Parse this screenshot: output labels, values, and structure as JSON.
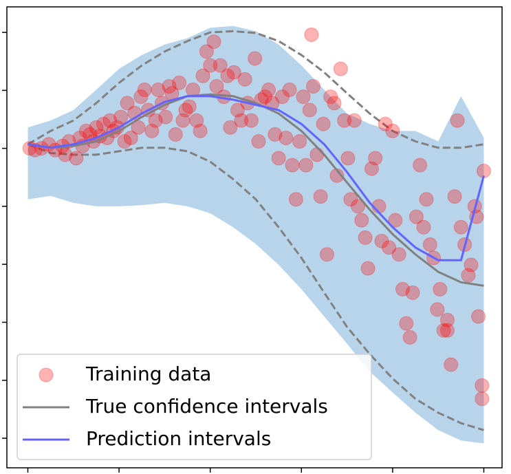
{
  "chart_data": {
    "type": "scatter",
    "x": [
      0,
      0.25,
      0.5,
      0.75,
      1,
      1.25,
      1.5,
      1.75,
      2,
      2.25,
      2.5,
      2.75,
      3,
      3.25,
      3.5,
      3.75,
      4,
      4.25,
      4.5,
      4.75,
      5
    ],
    "series": [
      {
        "name": "Training data",
        "type": "scatter",
        "color": "#ff0000",
        "x": [
          0.02,
          0.08,
          0.15,
          0.23,
          0.3,
          0.38,
          0.41,
          0.45,
          0.53,
          0.57,
          0.6,
          0.64,
          0.68,
          0.72,
          0.75,
          0.79,
          0.83,
          0.87,
          0.9,
          0.94,
          0.98,
          1.02,
          1.06,
          1.09,
          1.13,
          1.17,
          1.21,
          1.24,
          1.28,
          1.32,
          1.36,
          1.4,
          1.43,
          1.47,
          1.51,
          1.55,
          1.58,
          1.62,
          1.66,
          1.7,
          1.73,
          1.77,
          1.81,
          1.85,
          1.89,
          1.92,
          1.96,
          2.0,
          2.04,
          2.07,
          2.11,
          2.15,
          2.19,
          2.22,
          2.26,
          2.3,
          2.34,
          2.38,
          2.41,
          2.45,
          2.49,
          2.53,
          2.56,
          2.6,
          2.64,
          2.68,
          2.71,
          2.75,
          2.79,
          2.83,
          2.87,
          2.9,
          2.94,
          2.98,
          3.02,
          3.05,
          3.09,
          3.13,
          3.17,
          3.21,
          3.24,
          3.28,
          3.32,
          3.36,
          3.39,
          3.43,
          3.47,
          3.51,
          3.54,
          3.58,
          3.62,
          3.66,
          3.7,
          3.73,
          3.77,
          3.81,
          3.85,
          3.88,
          3.92,
          3.96,
          4.0,
          4.03,
          4.07,
          4.11,
          4.15,
          4.19,
          4.22,
          4.26,
          4.3,
          4.34,
          4.37,
          4.41,
          4.45,
          4.49,
          4.52,
          4.56,
          4.6,
          4.64,
          4.68,
          4.71,
          4.75,
          4.79,
          4.83,
          4.86,
          4.9,
          4.94,
          4.98,
          5.0,
          4.98,
          3.11,
          4.6,
          4.92
        ],
        "y": [
          5.0,
          4.97,
          5.0,
          5.07,
          4.97,
          5.04,
          4.89,
          5.12,
          4.83,
          5.18,
          5.04,
          5.3,
          5.24,
          5.12,
          5.36,
          5.21,
          5.42,
          5.18,
          5.48,
          5.3,
          5.36,
          5.54,
          5.12,
          5.78,
          5.18,
          5.61,
          5.36,
          5.89,
          6.01,
          5.66,
          5.3,
          5.48,
          6.01,
          5.78,
          5.54,
          6.07,
          5.95,
          5.24,
          6.13,
          5.48,
          5.66,
          5.72,
          6.01,
          5.48,
          5.3,
          6.25,
          6.67,
          6.43,
          6.84,
          6.07,
          6.43,
          5.89,
          6.25,
          5.36,
          6.31,
          5.66,
          5.48,
          6.19,
          5.78,
          5.48,
          6.55,
          5.12,
          5.84,
          5.89,
          6.01,
          5.78,
          5.24,
          4.83,
          5.89,
          5.18,
          6.01,
          4.71,
          4.12,
          5.12,
          5.89,
          4.71,
          5.66,
          6.07,
          4.89,
          4.17,
          5.42,
          3.17,
          5.89,
          5.78,
          4.53,
          6.37,
          5.48,
          4.83,
          4.12,
          5.48,
          4.0,
          3.76,
          3.46,
          2.93,
          4.65,
          4.83,
          4.0,
          3.4,
          5.42,
          3.29,
          5.3,
          3.76,
          3.17,
          2.57,
          1.98,
          1.74,
          2.51,
          3.82,
          4.71,
          3.64,
          4.12,
          3.34,
          3.11,
          2.22,
          2.57,
          1.86,
          2.04,
          1.27,
          4.17,
          5.48,
          3.64,
          3.34,
          2.81,
          2.99,
          4.0,
          2.1,
          0.91,
          4.61,
          0.68,
          6.96,
          1.86,
          3.82
        ]
      },
      {
        "name": "True confidence intervals",
        "type": "line",
        "color": "#808080",
        "values": [
          5.07,
          5.01,
          5.04,
          5.12,
          5.3,
          5.54,
          5.75,
          5.9,
          5.93,
          5.9,
          5.78,
          5.6,
          5.3,
          4.89,
          4.41,
          3.94,
          3.52,
          3.17,
          2.87,
          2.69,
          2.63
        ]
      },
      {
        "name": "Prediction intervals",
        "type": "line",
        "color": "#6262ff",
        "values": [
          5.07,
          5.01,
          5.07,
          5.18,
          5.36,
          5.6,
          5.8,
          5.9,
          5.9,
          5.84,
          5.75,
          5.66,
          5.42,
          5.07,
          4.59,
          4.06,
          3.64,
          3.29,
          3.07,
          3.07,
          4.53
        ]
      }
    ],
    "true_interval": {
      "color": "#808080",
      "upper": [
        5.07,
        5.3,
        5.48,
        5.78,
        6.13,
        6.43,
        6.67,
        6.85,
        7.0,
        7.02,
        6.99,
        6.85,
        6.61,
        6.31,
        5.95,
        5.6,
        5.3,
        5.12,
        5.01,
        5.01,
        5.07
      ],
      "lower": [
        5.07,
        4.92,
        4.89,
        4.89,
        4.95,
        5.01,
        5.01,
        4.95,
        4.77,
        4.47,
        4.12,
        3.64,
        3.11,
        2.51,
        1.92,
        1.45,
        1.03,
        0.68,
        0.44,
        0.26,
        0.14
      ]
    },
    "prediction_band": {
      "color": "#b8d4ea",
      "upper": [
        5.36,
        5.48,
        5.66,
        6.01,
        6.37,
        6.61,
        6.79,
        6.9,
        7.08,
        7.11,
        7.02,
        6.79,
        6.43,
        6.01,
        5.6,
        5.42,
        5.3,
        5.3,
        5.12,
        5.9,
        5.18
      ],
      "lower": [
        4.12,
        4.18,
        4.06,
        4.0,
        4.0,
        4.02,
        4.06,
        4.0,
        3.88,
        3.64,
        3.35,
        2.99,
        2.57,
        2.1,
        1.63,
        1.15,
        0.79,
        0.44,
        0.14,
        -0.04,
        -0.09
      ]
    },
    "xlim": [
      -0.23,
      5.2
    ],
    "ylim": [
      -0.51,
      7.44
    ],
    "xticks": [
      0,
      1,
      2,
      3,
      4,
      5
    ],
    "yticks": [
      0,
      1,
      2,
      3,
      4,
      5,
      6,
      7
    ],
    "legend": "lower left"
  }
}
